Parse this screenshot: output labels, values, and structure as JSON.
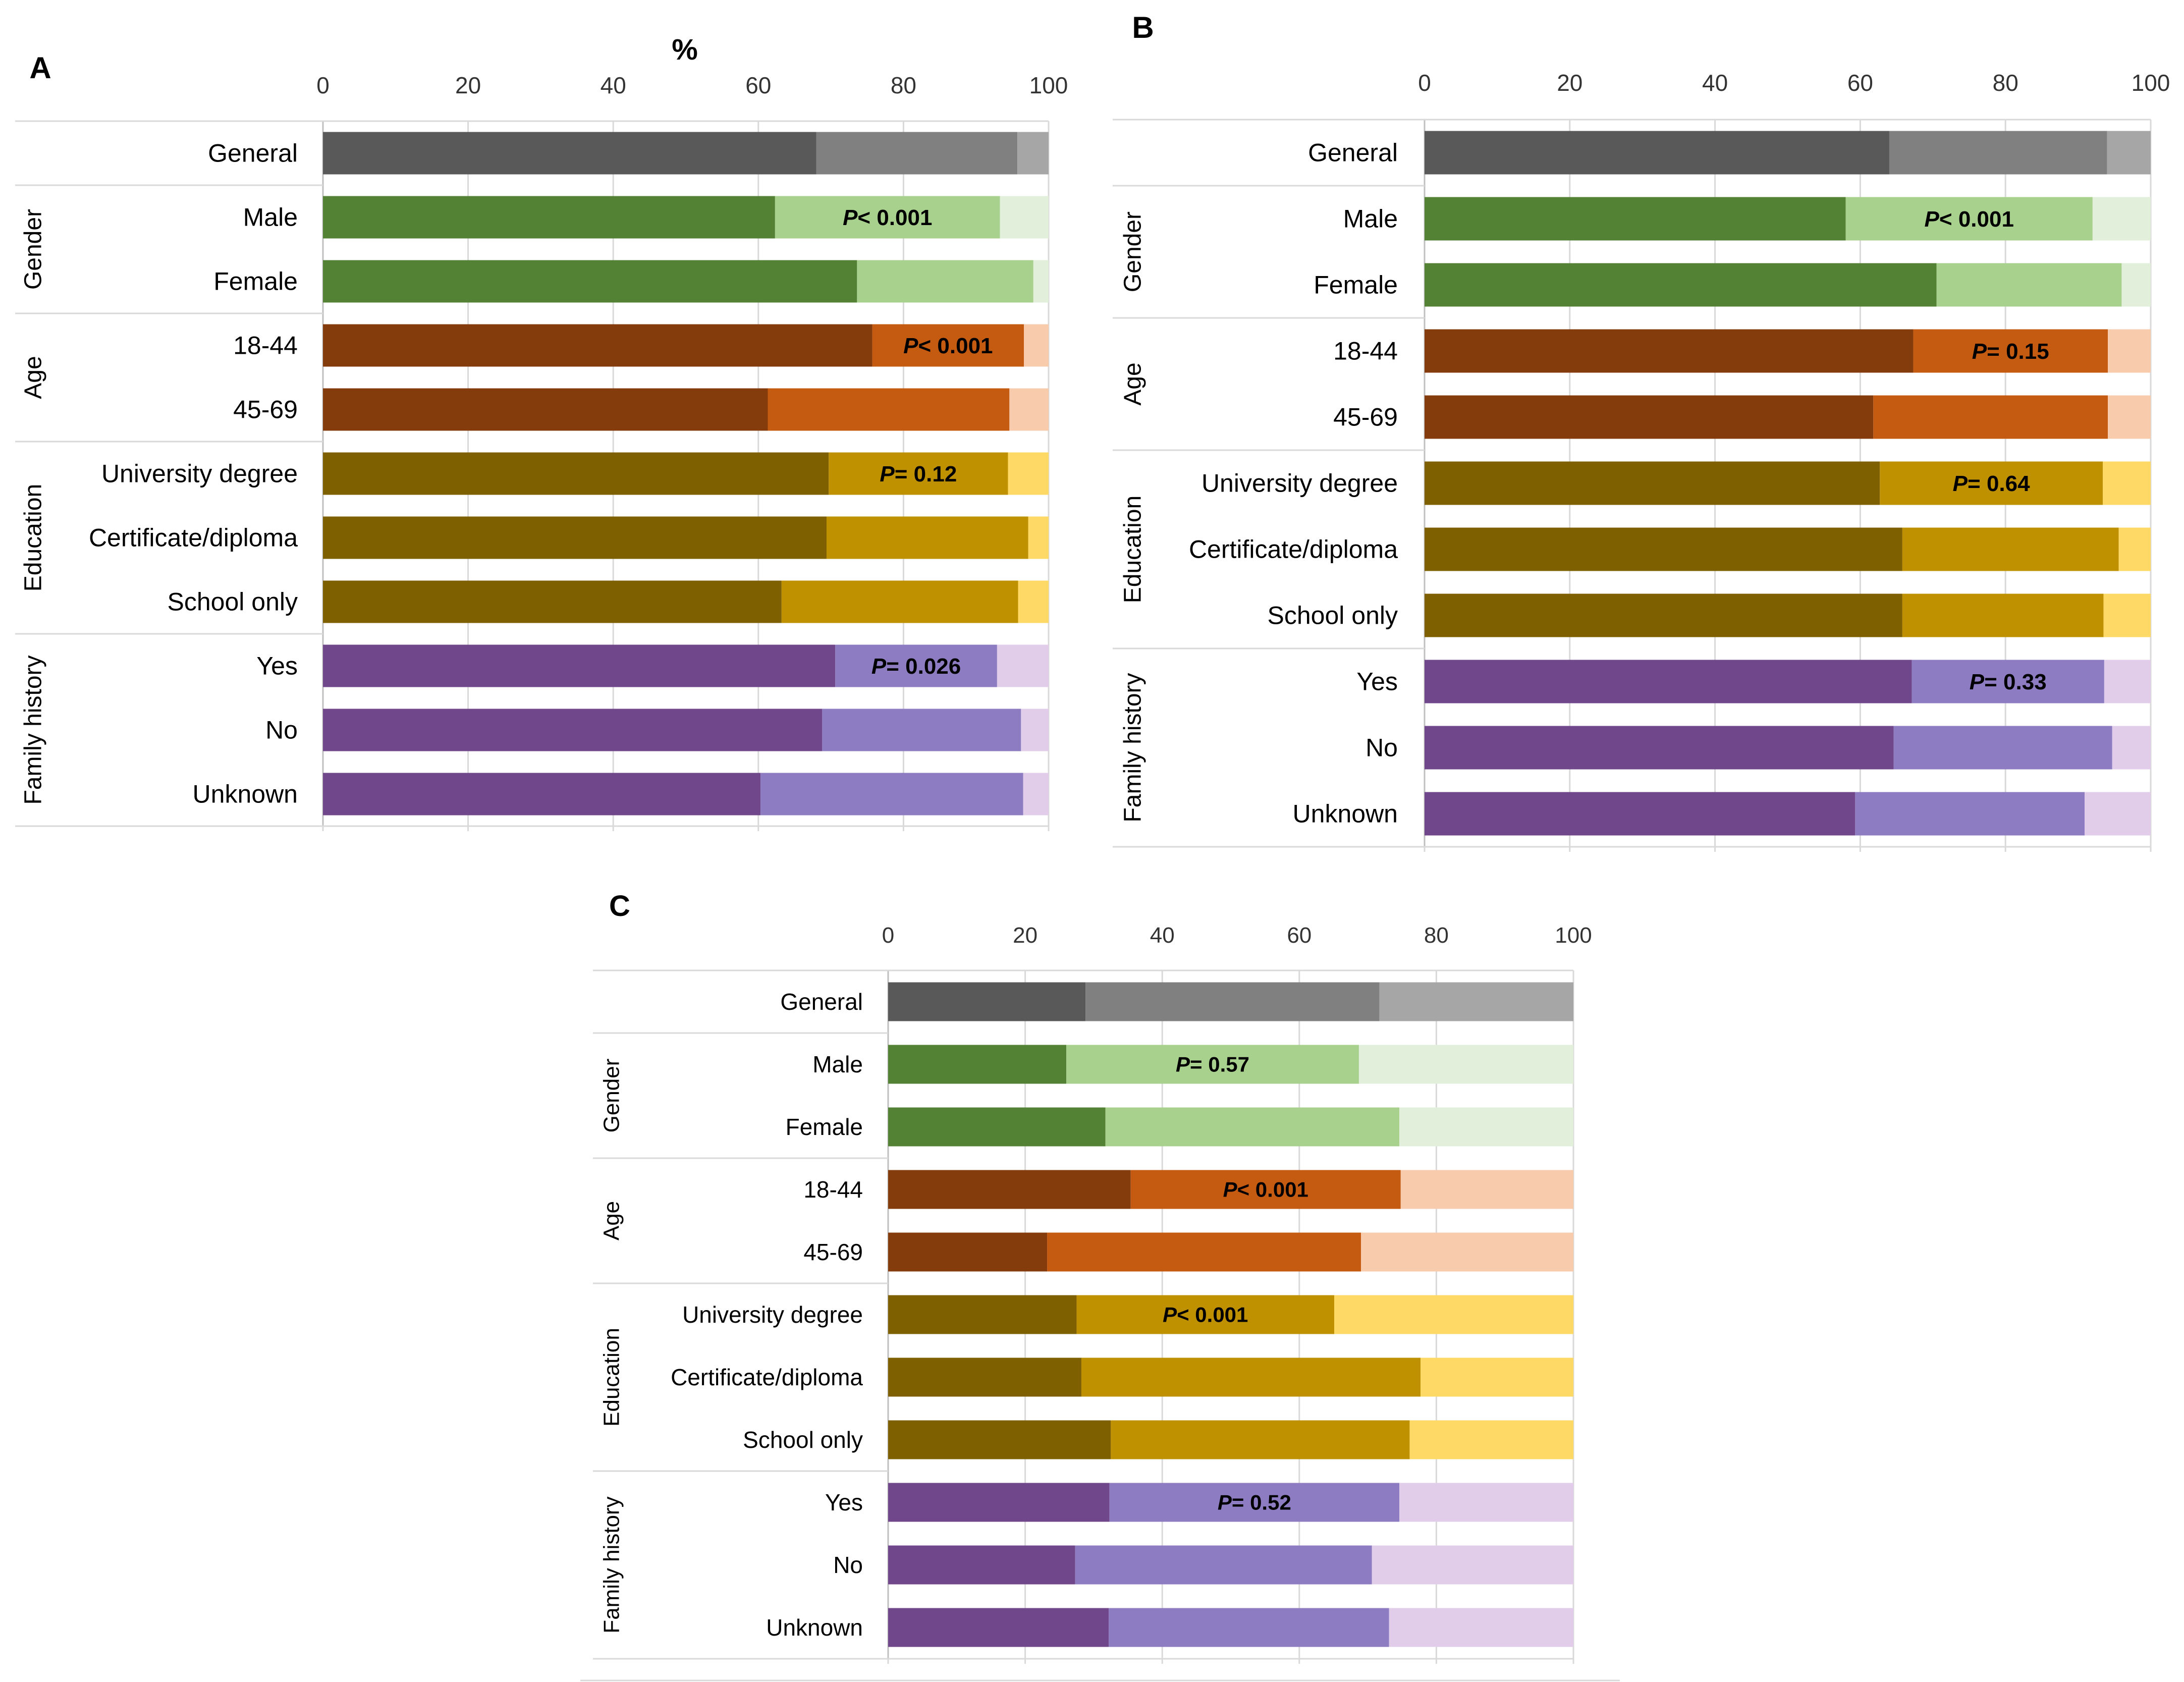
{
  "figure": {
    "axis_unit_label": "%"
  },
  "colors": {
    "General": [
      "#595959",
      "#808080",
      "#a6a6a6"
    ],
    "Gender": [
      "#548235",
      "#a9d18e",
      "#e2efda"
    ],
    "Age": [
      "#843c0c",
      "#c55a11",
      "#f8cbad"
    ],
    "Education": [
      "#7f6000",
      "#bf9000",
      "#ffd966"
    ],
    "Family history": [
      "#70478a",
      "#8e7cc3",
      "#e1cdea"
    ],
    "text": "#000000",
    "grid": "#d9d9d9",
    "tick": "#333333"
  },
  "chart_data": [
    {
      "panel": "A",
      "type": "bar",
      "orientation": "horizontal",
      "stacked": true,
      "xlim": [
        0,
        100
      ],
      "xticks": [
        "0",
        "20",
        "40",
        "60",
        "80",
        "100"
      ],
      "xlabel": "%",
      "groups": [
        {
          "name": "General",
          "show_label": false,
          "rows": [
            {
              "label": "General",
              "values": [
                68,
                27.7,
                4.3
              ]
            }
          ]
        },
        {
          "name": "Gender",
          "show_label": true,
          "p": "P< 0.001",
          "rows": [
            {
              "label": "Male",
              "values": [
                62.3,
                31,
                6.7
              ]
            },
            {
              "label": "Female",
              "values": [
                73.6,
                24.3,
                2.1
              ]
            }
          ]
        },
        {
          "name": "Age",
          "show_label": true,
          "p": "P< 0.001",
          "rows": [
            {
              "label": "18-44",
              "values": [
                75.7,
                20.9,
                3.4
              ]
            },
            {
              "label": "45-69",
              "values": [
                61.3,
                33.3,
                5.4
              ]
            }
          ]
        },
        {
          "name": "Education",
          "show_label": true,
          "p": "P= 0.12",
          "rows": [
            {
              "label": "University degree",
              "values": [
                69.7,
                24.7,
                5.6
              ]
            },
            {
              "label": "Certificate/diploma",
              "values": [
                69.4,
                27.8,
                2.8
              ]
            },
            {
              "label": "School only",
              "values": [
                63.2,
                32.6,
                4.2
              ]
            }
          ]
        },
        {
          "name": "Family history",
          "show_label": true,
          "p": "P= 0.026",
          "rows": [
            {
              "label": "Yes",
              "values": [
                70.6,
                22.3,
                7.1
              ]
            },
            {
              "label": "No",
              "values": [
                68.8,
                27.4,
                3.8
              ]
            },
            {
              "label": "Unknown",
              "values": [
                60.3,
                36.2,
                3.5
              ]
            }
          ]
        }
      ]
    },
    {
      "panel": "B",
      "type": "bar",
      "orientation": "horizontal",
      "stacked": true,
      "xlim": [
        0,
        100
      ],
      "xticks": [
        "0",
        "20",
        "40",
        "60",
        "80",
        "100"
      ],
      "groups": [
        {
          "name": "General",
          "show_label": false,
          "rows": [
            {
              "label": "General",
              "values": [
                64,
                30,
                6
              ]
            }
          ]
        },
        {
          "name": "Gender",
          "show_label": true,
          "p": "P< 0.001",
          "rows": [
            {
              "label": "Male",
              "values": [
                58,
                34,
                8
              ]
            },
            {
              "label": "Female",
              "values": [
                70.5,
                25.5,
                4
              ]
            }
          ]
        },
        {
          "name": "Age",
          "show_label": true,
          "p": "P= 0.15",
          "rows": [
            {
              "label": "18-44",
              "values": [
                67.3,
                26.8,
                5.9
              ]
            },
            {
              "label": "45-69",
              "values": [
                61.8,
                32.3,
                5.9
              ]
            }
          ]
        },
        {
          "name": "Education",
          "show_label": true,
          "p": "P= 0.64",
          "rows": [
            {
              "label": "University degree",
              "values": [
                62.7,
                30.7,
                6.6
              ]
            },
            {
              "label": "Certificate/diploma",
              "values": [
                65.8,
                29.8,
                4.4
              ]
            },
            {
              "label": "School only",
              "values": [
                65.8,
                27.7,
                6.5
              ]
            }
          ]
        },
        {
          "name": "Family history",
          "show_label": true,
          "p": "P= 0.33",
          "rows": [
            {
              "label": "Yes",
              "values": [
                67.1,
                26.5,
                6.4
              ]
            },
            {
              "label": "No",
              "values": [
                64.6,
                30.1,
                5.3
              ]
            },
            {
              "label": "Unknown",
              "values": [
                59.3,
                31.6,
                9.1
              ]
            }
          ]
        }
      ]
    },
    {
      "panel": "C",
      "type": "bar",
      "orientation": "horizontal",
      "stacked": true,
      "xlim": [
        0,
        100
      ],
      "xticks": [
        "0",
        "20",
        "40",
        "60",
        "80",
        "100"
      ],
      "groups": [
        {
          "name": "General",
          "show_label": false,
          "rows": [
            {
              "label": "General",
              "values": [
                28.8,
                42.9,
                28.3
              ]
            }
          ]
        },
        {
          "name": "Gender",
          "show_label": true,
          "p": "P= 0.57",
          "rows": [
            {
              "label": "Male",
              "values": [
                26,
                42.7,
                31.3
              ]
            },
            {
              "label": "Female",
              "values": [
                31.7,
                42.9,
                25.4
              ]
            }
          ]
        },
        {
          "name": "Age",
          "show_label": true,
          "p": "P< 0.001",
          "rows": [
            {
              "label": "18-44",
              "values": [
                35.4,
                39.4,
                25.2
              ]
            },
            {
              "label": "45-69",
              "values": [
                23.2,
                45.8,
                31
              ]
            }
          ]
        },
        {
          "name": "Education",
          "show_label": true,
          "p": "P< 0.001",
          "rows": [
            {
              "label": "University degree",
              "values": [
                27.5,
                37.6,
                34.9
              ]
            },
            {
              "label": "Certificate/diploma",
              "values": [
                28.2,
                49.5,
                22.3
              ]
            },
            {
              "label": "School only",
              "values": [
                32.5,
                43.6,
                23.9
              ]
            }
          ]
        },
        {
          "name": "Family history",
          "show_label": true,
          "p": "P= 0.52",
          "rows": [
            {
              "label": "Yes",
              "values": [
                32.3,
                42.3,
                25.4
              ]
            },
            {
              "label": "No",
              "values": [
                27.3,
                43.3,
                29.4
              ]
            },
            {
              "label": "Unknown",
              "values": [
                32.2,
                40.9,
                26.9
              ]
            }
          ]
        }
      ]
    }
  ]
}
